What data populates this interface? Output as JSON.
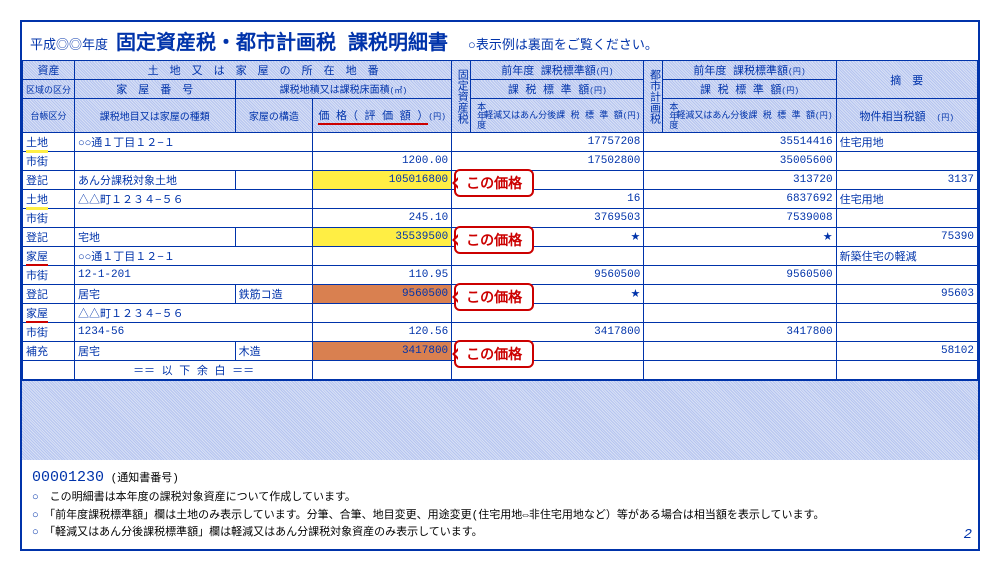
{
  "header": {
    "era": "平成◎◎年度",
    "title": "固定資産税・都市計画税 課税明細書",
    "note": "○表示例は裏面をご覧ください。"
  },
  "colhead": {
    "shisan": "資産",
    "kuiki": "区域の区分",
    "daicho": "台帳区分",
    "addr": "土　地　又　は　家　屋　の　所　在　地　番",
    "kaoku": "家　屋　番　号",
    "menseki": "課税地積又は課税床面積",
    "menseki_unit": "(㎡)",
    "chimoku": "課税地目又は家屋の種類",
    "kouzou": "家屋の構造",
    "kakaku": "価 格（ 評 価 額 ）",
    "kakaku_unit": "(円)",
    "kotei_v": "固定資産税",
    "toshi_v": "都市計画税",
    "zen": "前年度 課税標準額",
    "hon": "課 税 標 準 額",
    "keigen_v": "本年度",
    "keigen": "軽減又はあん分後課 税 標 準 額",
    "yen": "(円)",
    "tekiyo": "摘　要",
    "soutou": "物件相当税額",
    "soutou_unit": "(円)"
  },
  "rows": [
    {
      "c1": "土地",
      "c1u": "y",
      "c2": "○○通１丁目１２−１",
      "c3": "",
      "c4_callout": false,
      "v1": "17757208",
      "v2": "35514416",
      "v3": "住宅用地"
    },
    {
      "c1": "市街",
      "c2": "",
      "c3": "1200.00",
      "c4_callout": false,
      "v1": "17502800",
      "v2": "35005600",
      "v3": ""
    },
    {
      "c1": "登記",
      "c2": "あん分課税対象土地",
      "c2b": "",
      "c3": "105016800",
      "c3hl": "y",
      "c4_callout": true,
      "v1": "",
      "v2": "313720",
      "v3": "3137"
    },
    {
      "c1": "土地",
      "c1u": "y",
      "c2": "△△町１２３４−５６",
      "c3": "",
      "c4_callout": false,
      "v1": "16",
      "v2": "6837692",
      "v3": "住宅用地"
    },
    {
      "c1": "市街",
      "c2": "",
      "c3": "245.10",
      "c4_callout": false,
      "v1": "3769503",
      "v2": "7539008",
      "v3": ""
    },
    {
      "c1": "登記",
      "c2": "宅地",
      "c2b": "",
      "c3": "35539500",
      "c3hl": "y",
      "c4_callout": true,
      "v1": "★",
      "v2": "★",
      "v3": "75390"
    },
    {
      "c1": "家屋",
      "c1u": "r",
      "c2": "○○通１丁目１２−１",
      "c3": "",
      "c4_callout": false,
      "v1": "",
      "v2": "",
      "v3": "新築住宅の軽減"
    },
    {
      "c1": "市街",
      "c2": "12-1-201",
      "c3": "110.95",
      "c4_callout": false,
      "v1": "9560500",
      "v2": "9560500",
      "v3": ""
    },
    {
      "c1": "登記",
      "c2": "居宅",
      "c2b": "鉄筋コ造",
      "c3": "9560500",
      "c3hl": "o",
      "c4_callout": true,
      "v1": "★",
      "v2": "",
      "v3": "95603"
    },
    {
      "c1": "家屋",
      "c1u": "r",
      "c2": "△△町１２３４−５６",
      "c3": "",
      "c4_callout": false,
      "v1": "",
      "v2": "",
      "v3": ""
    },
    {
      "c1": "市街",
      "c2": "1234-56",
      "c3": "120.56",
      "c4_callout": false,
      "v1": "3417800",
      "v2": "3417800",
      "v3": ""
    },
    {
      "c1": "補充",
      "c2": "居宅",
      "c2b": "木造",
      "c3": "3417800",
      "c3hl": "o",
      "c4_callout": true,
      "v1": "",
      "v2": "",
      "v3": "58102"
    },
    {
      "c1": "",
      "c2": "＝＝ 以 下 余 白 ＝＝",
      "c2center": true,
      "c3": "",
      "c4_callout": false,
      "v1": "",
      "v2": "",
      "v3": ""
    }
  ],
  "callout_text": "この価格",
  "footer": {
    "docnum": "00001230",
    "docnum_label": "(通知書番号)",
    "n1": "この明細書は本年度の課税対象資産について作成しています。",
    "n2": "「前年度課税標準額」欄は土地のみ表示しています。分筆、合筆、地目変更、用途変更(住宅用地⇔非住宅用地など）等がある場合は相当額を表示しています。",
    "n3": "「軽減又はあん分後課税標準額」欄は軽減又はあん分課税対象資産のみ表示しています。",
    "pagenum": "2"
  }
}
